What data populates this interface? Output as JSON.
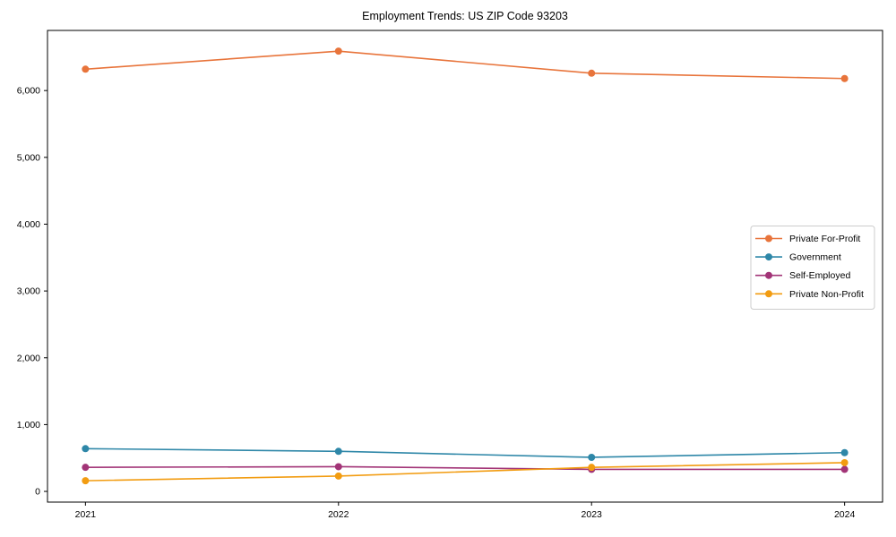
{
  "chart_data": {
    "type": "line",
    "title": "Employment Trends: US ZIP Code 93203",
    "xlabel": "",
    "ylabel": "",
    "x": [
      2021,
      2022,
      2023,
      2024
    ],
    "x_tick_labels": [
      "2021",
      "2022",
      "2023",
      "2024"
    ],
    "series": [
      {
        "name": "Private For-Profit",
        "color": "#e8743b",
        "values": [
          6320,
          6590,
          6260,
          6180
        ]
      },
      {
        "name": "Government",
        "color": "#2e87a8",
        "values": [
          640,
          600,
          510,
          580
        ]
      },
      {
        "name": "Self-Employed",
        "color": "#a23477",
        "values": [
          360,
          370,
          330,
          330
        ]
      },
      {
        "name": "Private Non-Profit",
        "color": "#f29c11",
        "values": [
          160,
          230,
          360,
          430
        ]
      }
    ],
    "yticks": [
      0,
      1000,
      2000,
      3000,
      4000,
      5000,
      6000
    ],
    "ytick_labels": [
      "0",
      "1,000",
      "2,000",
      "3,000",
      "4,000",
      "5,000",
      "6,000"
    ],
    "ylim": [
      -160,
      6900
    ],
    "xlim": [
      2020.85,
      2024.15
    ],
    "grid": false,
    "legend_position": "right-middle",
    "frame_color": "#000000",
    "tick_color": "#000000",
    "legend_border_color": "#cccccc",
    "background_color": "#ffffff"
  }
}
